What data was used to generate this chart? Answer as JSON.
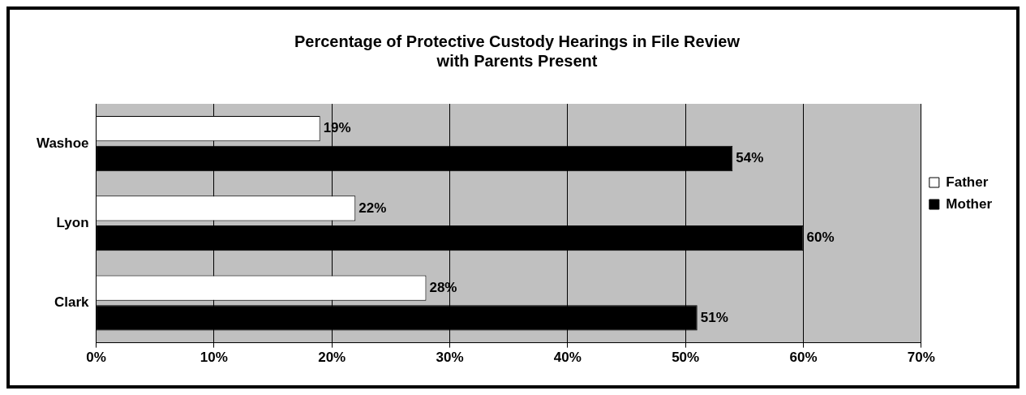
{
  "chart_data": {
    "type": "bar",
    "orientation": "horizontal",
    "title": "Percentage of Protective Custody Hearings in File Review\nwith Parents Present",
    "categories": [
      "Washoe",
      "Lyon",
      "Clark"
    ],
    "series": [
      {
        "name": "Father",
        "color": "#ffffff",
        "values": [
          19,
          22,
          28
        ],
        "value_labels": [
          "19%",
          "22%",
          "28%"
        ]
      },
      {
        "name": "Mother",
        "color": "#000000",
        "values": [
          54,
          60,
          51
        ],
        "value_labels": [
          "54%",
          "60%",
          "51%"
        ]
      }
    ],
    "xlim": [
      0,
      70
    ],
    "xticks": [
      {
        "value": 0,
        "label": "0%"
      },
      {
        "value": 10,
        "label": "10%"
      },
      {
        "value": 20,
        "label": "20%"
      },
      {
        "value": 30,
        "label": "30%"
      },
      {
        "value": 40,
        "label": "40%"
      },
      {
        "value": 50,
        "label": "50%"
      },
      {
        "value": 60,
        "label": "60%"
      },
      {
        "value": 70,
        "label": "70%"
      }
    ],
    "grid": "x",
    "legend": "right"
  }
}
